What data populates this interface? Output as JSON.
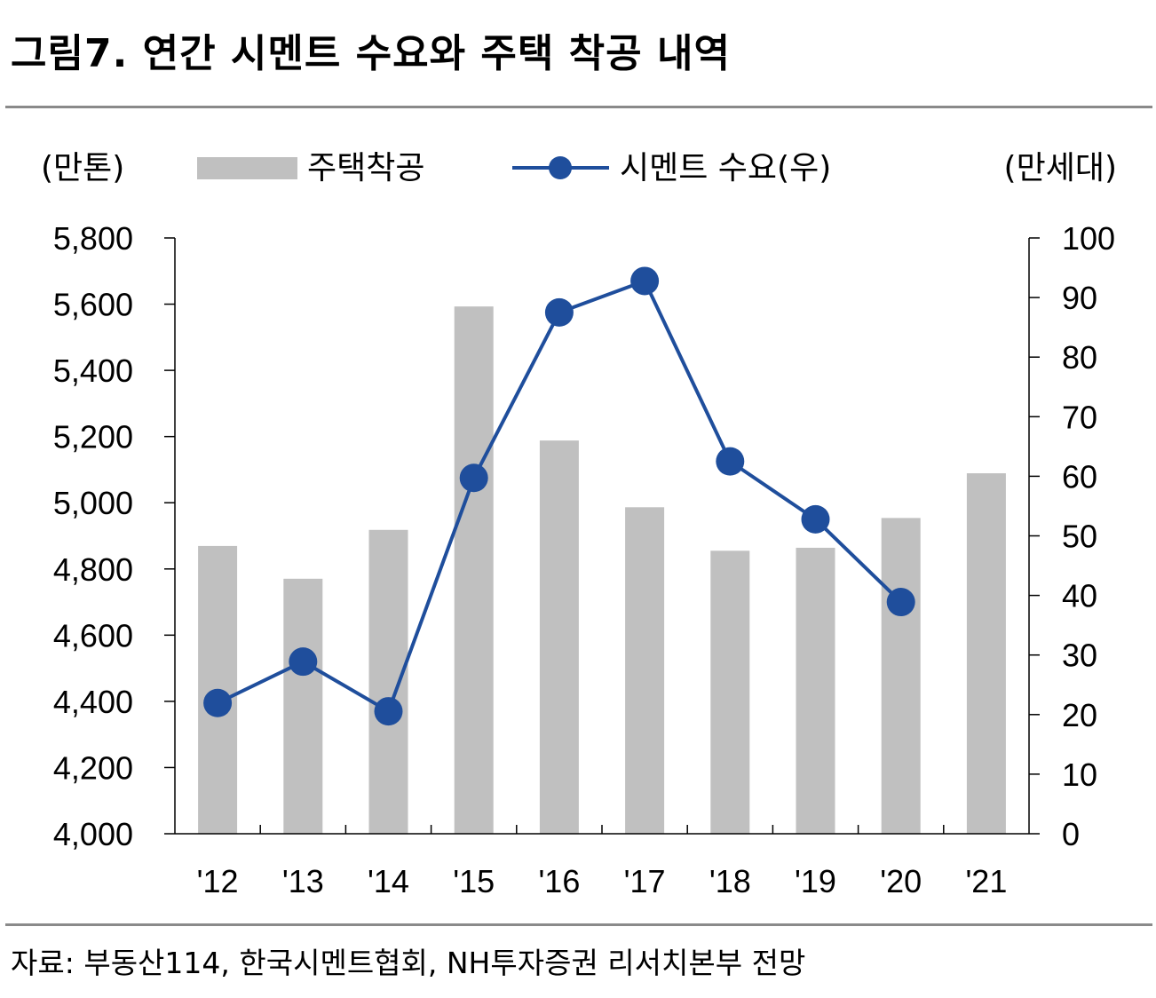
{
  "title": "그림7. 연간 시멘트 수요와 주택 착공 내역",
  "source": "자료: 부동산114, 한국시멘트협회, NH투자증권 리서치본부 전망",
  "chart_data": {
    "type": "bar",
    "categories": [
      "'12",
      "'13",
      "'14",
      "'15",
      "'16",
      "'17",
      "'18",
      "'19",
      "'20",
      "'21"
    ],
    "series": [
      {
        "name": "주택착공",
        "type": "bar",
        "axis": "right",
        "color": "#c0c0c0",
        "values": [
          48.3,
          42.8,
          51.0,
          88.5,
          66.0,
          54.8,
          47.5,
          48.0,
          53.0,
          60.5
        ]
      },
      {
        "name": "시멘트 수요(우)",
        "type": "line",
        "axis": "left",
        "color": "#1f4e9c",
        "values": [
          4395,
          4520,
          4370,
          5075,
          5575,
          5670,
          5125,
          4950,
          4700,
          null
        ]
      }
    ],
    "y_left": {
      "unit": "(만톤)",
      "ylim": [
        4000,
        5800
      ],
      "ticks": [
        "4,000",
        "4,200",
        "4,400",
        "4,600",
        "4,800",
        "5,000",
        "5,200",
        "5,400",
        "5,600",
        "5,800"
      ]
    },
    "y_right": {
      "unit": "(만세대)",
      "ylim": [
        0,
        100
      ],
      "ticks": [
        "0",
        "10",
        "20",
        "30",
        "40",
        "50",
        "60",
        "70",
        "80",
        "90",
        "100"
      ]
    },
    "legend_position": "top",
    "grid": false
  }
}
